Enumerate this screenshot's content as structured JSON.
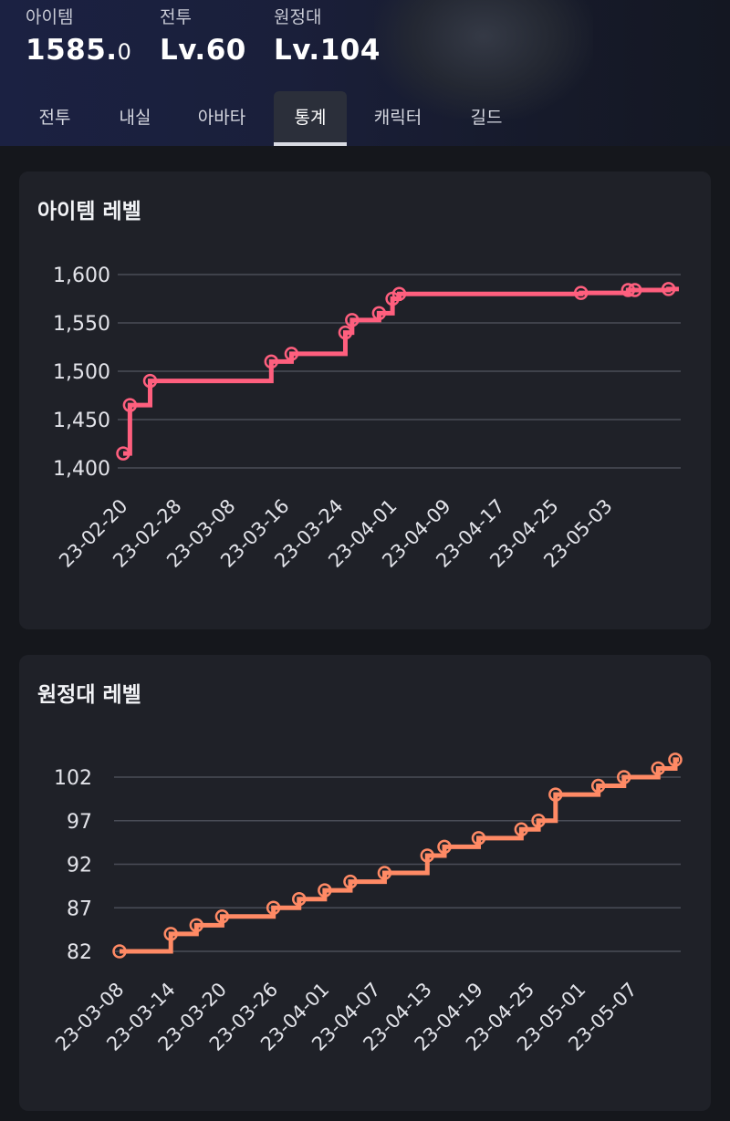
{
  "header": {
    "stats": [
      {
        "label": "아이템",
        "value": "1585.",
        "value_decimal": "0"
      },
      {
        "label": "전투",
        "value": "Lv.60"
      },
      {
        "label": "원정대",
        "value": "Lv.104"
      }
    ],
    "tabs": [
      {
        "label": "전투"
      },
      {
        "label": "내실"
      },
      {
        "label": "아바타"
      },
      {
        "label": "통계",
        "active": true
      },
      {
        "label": "캐릭터"
      },
      {
        "label": "길드"
      }
    ]
  },
  "chart_data": [
    {
      "type": "line",
      "step": true,
      "title": "아이템 레벨",
      "color": "#ff5f7e",
      "y_ticks": [
        "1,400",
        "1,450",
        "1,500",
        "1,550",
        "1,600"
      ],
      "y_tick_values": [
        1400,
        1450,
        1500,
        1550,
        1600
      ],
      "ylim": [
        1400,
        1600
      ],
      "x_ticks": [
        "23-02-20",
        "23-02-28",
        "23-03-08",
        "23-03-16",
        "23-03-24",
        "23-04-01",
        "23-04-09",
        "23-04-17",
        "23-04-25",
        "23-05-03"
      ],
      "x_range": [
        "2023-02-20",
        "2023-05-13"
      ],
      "grid": true,
      "points": [
        {
          "x": "2023-02-20",
          "y": 1415
        },
        {
          "x": "2023-02-21",
          "y": 1465
        },
        {
          "x": "2023-02-24",
          "y": 1490
        },
        {
          "x": "2023-03-14",
          "y": 1510
        },
        {
          "x": "2023-03-17",
          "y": 1518
        },
        {
          "x": "2023-03-25",
          "y": 1540
        },
        {
          "x": "2023-03-26",
          "y": 1553
        },
        {
          "x": "2023-03-30",
          "y": 1560
        },
        {
          "x": "2023-04-01",
          "y": 1575
        },
        {
          "x": "2023-04-02",
          "y": 1580
        },
        {
          "x": "2023-04-29",
          "y": 1581
        },
        {
          "x": "2023-05-06",
          "y": 1584
        },
        {
          "x": "2023-05-07",
          "y": 1584
        },
        {
          "x": "2023-05-12",
          "y": 1585
        }
      ]
    },
    {
      "type": "line",
      "step": true,
      "title": "원정대 레벨",
      "color": "#ff8a65",
      "y_ticks": [
        "82",
        "87",
        "92",
        "97",
        "102"
      ],
      "y_tick_values": [
        82,
        87,
        92,
        97,
        102
      ],
      "ylim": [
        82,
        102
      ],
      "x_ticks": [
        "23-03-08",
        "23-03-14",
        "23-03-20",
        "23-03-26",
        "23-04-01",
        "23-04-07",
        "23-04-13",
        "23-04-19",
        "23-04-25",
        "23-05-01",
        "23-05-07"
      ],
      "x_range": [
        "2023-03-08",
        "2023-05-12"
      ],
      "grid": true,
      "points": [
        {
          "x": "2023-03-08",
          "y": 82
        },
        {
          "x": "2023-03-14",
          "y": 84
        },
        {
          "x": "2023-03-17",
          "y": 85
        },
        {
          "x": "2023-03-20",
          "y": 86
        },
        {
          "x": "2023-03-26",
          "y": 87
        },
        {
          "x": "2023-03-29",
          "y": 88
        },
        {
          "x": "2023-04-01",
          "y": 89
        },
        {
          "x": "2023-04-04",
          "y": 90
        },
        {
          "x": "2023-04-08",
          "y": 91
        },
        {
          "x": "2023-04-13",
          "y": 93
        },
        {
          "x": "2023-04-15",
          "y": 94
        },
        {
          "x": "2023-04-19",
          "y": 95
        },
        {
          "x": "2023-04-24",
          "y": 96
        },
        {
          "x": "2023-04-26",
          "y": 97
        },
        {
          "x": "2023-04-28",
          "y": 100
        },
        {
          "x": "2023-05-03",
          "y": 101
        },
        {
          "x": "2023-05-06",
          "y": 102
        },
        {
          "x": "2023-05-10",
          "y": 103
        },
        {
          "x": "2023-05-12",
          "y": 104
        }
      ]
    }
  ]
}
